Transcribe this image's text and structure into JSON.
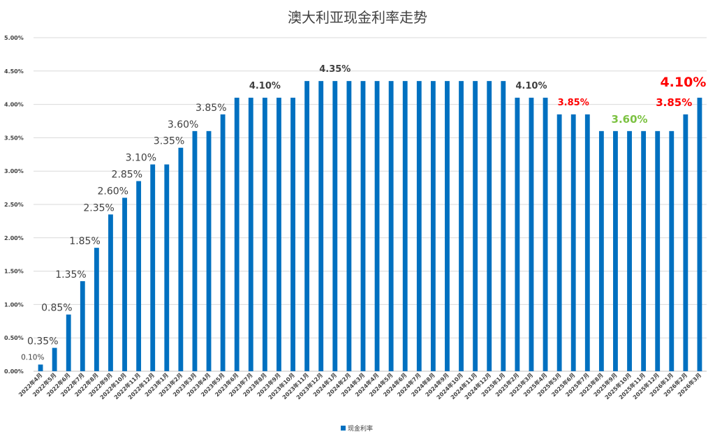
{
  "chart_data": {
    "type": "bar",
    "title": "澳大利亚现金利率走势",
    "legend": {
      "label": "现金利率",
      "placement": "bottom",
      "color": "#0070C0"
    },
    "bar_color": "#0070C0",
    "ylim": [
      0,
      5
    ],
    "y_ticks": [
      "0.00%",
      "0.50%",
      "1.00%",
      "1.50%",
      "2.00%",
      "2.50%",
      "3.00%",
      "3.50%",
      "4.00%",
      "4.50%",
      "5.00%"
    ],
    "grid": true,
    "categories": [
      "2022年4月",
      "2022年5月",
      "2022年6月",
      "2022年7月",
      "2022年8月",
      "2022年9月",
      "2022年10月",
      "2022年11月",
      "2022年12月",
      "2023年1月",
      "2023年2月",
      "2023年3月",
      "2023年4月",
      "2023年5月",
      "2023年6月",
      "2023年7月",
      "2023年8月",
      "2023年9月",
      "2023年10月",
      "2023年11月",
      "2023年12月",
      "2024年1月",
      "2024年2月",
      "2024年3月",
      "2024年4月",
      "2024年5月",
      "2024年6月",
      "2024年7月",
      "2024年8月",
      "2024年9月",
      "2024年10月",
      "2024年11月",
      "2024年12月",
      "2025年1月",
      "2025年2月",
      "2025年3月",
      "2025年4月",
      "2025年5月",
      "2025年6月",
      "2025年7月",
      "2025年8月",
      "2025年9月",
      "2025年10月",
      "2025年11月",
      "2025年12月",
      "2026年1月",
      "2026年2月",
      "2026年3月"
    ],
    "values": [
      0.1,
      0.35,
      0.85,
      1.35,
      1.85,
      2.35,
      2.6,
      2.85,
      3.1,
      3.1,
      3.35,
      3.6,
      3.6,
      3.85,
      4.1,
      4.1,
      4.1,
      4.1,
      4.1,
      4.35,
      4.35,
      4.35,
      4.35,
      4.35,
      4.35,
      4.35,
      4.35,
      4.35,
      4.35,
      4.35,
      4.35,
      4.35,
      4.35,
      4.35,
      4.1,
      4.1,
      4.1,
      3.85,
      3.85,
      3.85,
      3.6,
      3.6,
      3.6,
      3.6,
      3.6,
      3.6,
      3.85,
      4.1
    ],
    "annotations": [
      {
        "text": "0.10%",
        "index": 0,
        "color": "#404040",
        "style": "small"
      },
      {
        "text": "0.35%",
        "index": 1,
        "color": "#404040",
        "style": "normal"
      },
      {
        "text": "0.85%",
        "index": 2,
        "color": "#404040",
        "style": "normal"
      },
      {
        "text": "1.35%",
        "index": 3,
        "color": "#404040",
        "style": "normal"
      },
      {
        "text": "1.85%",
        "index": 4,
        "color": "#404040",
        "style": "normal"
      },
      {
        "text": "2.35%",
        "index": 5,
        "color": "#404040",
        "style": "normal"
      },
      {
        "text": "2.60%",
        "index": 6,
        "color": "#404040",
        "style": "normal"
      },
      {
        "text": "2.85%",
        "index": 7,
        "color": "#404040",
        "style": "normal"
      },
      {
        "text": "3.10%",
        "index": 8,
        "color": "#404040",
        "style": "normal"
      },
      {
        "text": "3.35%",
        "index": 10,
        "color": "#404040",
        "style": "normal"
      },
      {
        "text": "3.60%",
        "index": 11,
        "color": "#404040",
        "style": "normal"
      },
      {
        "text": "3.85%",
        "index": 13,
        "color": "#404040",
        "style": "normal"
      },
      {
        "text": "4.10%",
        "index": 16,
        "color": "#404040",
        "style": "bold"
      },
      {
        "text": "4.35%",
        "index": 21,
        "color": "#404040",
        "style": "bold"
      },
      {
        "text": "4.10%",
        "index": 35,
        "color": "#404040",
        "style": "bold"
      },
      {
        "text": "3.85%",
        "index": 38,
        "color": "#ff0000",
        "style": "bold"
      },
      {
        "text": "3.60%",
        "index": 42,
        "color": "#7cc242",
        "style": "bigbold"
      },
      {
        "text": "3.85%",
        "index": 46,
        "color": "#ff0000",
        "style": "bigbold"
      },
      {
        "text": "4.10%",
        "index": 47,
        "color": "#ff0000",
        "style": "hugebold"
      }
    ]
  }
}
